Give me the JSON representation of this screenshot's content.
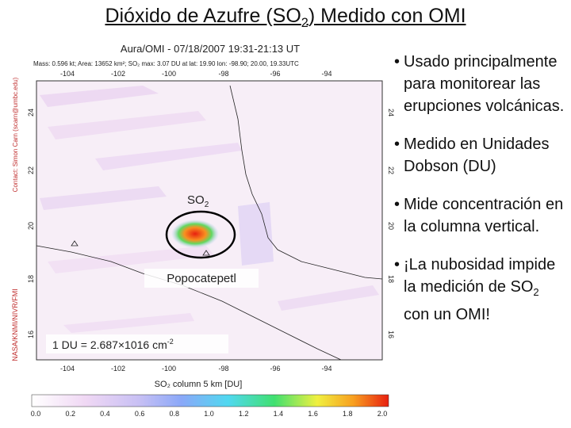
{
  "title": {
    "parts": [
      "Dióxido de Azufre (SO",
      "2",
      ") Medido con OMI"
    ]
  },
  "bullets": [
    {
      "parts": [
        "Usado principalmente para monitorear las erupciones volcánicas."
      ]
    },
    {
      "parts": [
        "Medido en Unidades Dobson (DU)"
      ]
    },
    {
      "parts": [
        "Mide concentración en la columna vertical."
      ]
    },
    {
      "parts": [
        "¡La nubosidad impide la medición de SO",
        "2",
        " con un OMI!"
      ]
    }
  ],
  "map": {
    "header": "Aura/OMI - 07/18/2007 19:31-21:13 UT",
    "subheader": "Mass: 0.596 kt; Area: 13652 km²; SO₂ max: 3.07 DU at lat: 19.90 lon: -98.90; 20.00, 19.33UTC",
    "lon_labels": [
      "-104",
      "-102",
      "-100",
      "-98",
      "-96",
      "-94"
    ],
    "lat_labels": [
      "24",
      "22",
      "20",
      "18",
      "16"
    ],
    "contact": "Contact: Simon Carn (scarn@umbc.edu)",
    "credit": "NASA/KNMI/NIVR/FMI",
    "colorbar_title": "SO₂ column 5 km [DU]",
    "colorbar_ticks": [
      "0.0",
      "0.2",
      "0.4",
      "0.6",
      "0.8",
      "1.0",
      "1.2",
      "1.4",
      "1.6",
      "1.8",
      "2.0"
    ],
    "so2_label": [
      "SO",
      "2"
    ],
    "volcano_label": "Popocatepetl",
    "du_note": [
      "1 DU = 2.687×1016 cm",
      "-2"
    ]
  }
}
